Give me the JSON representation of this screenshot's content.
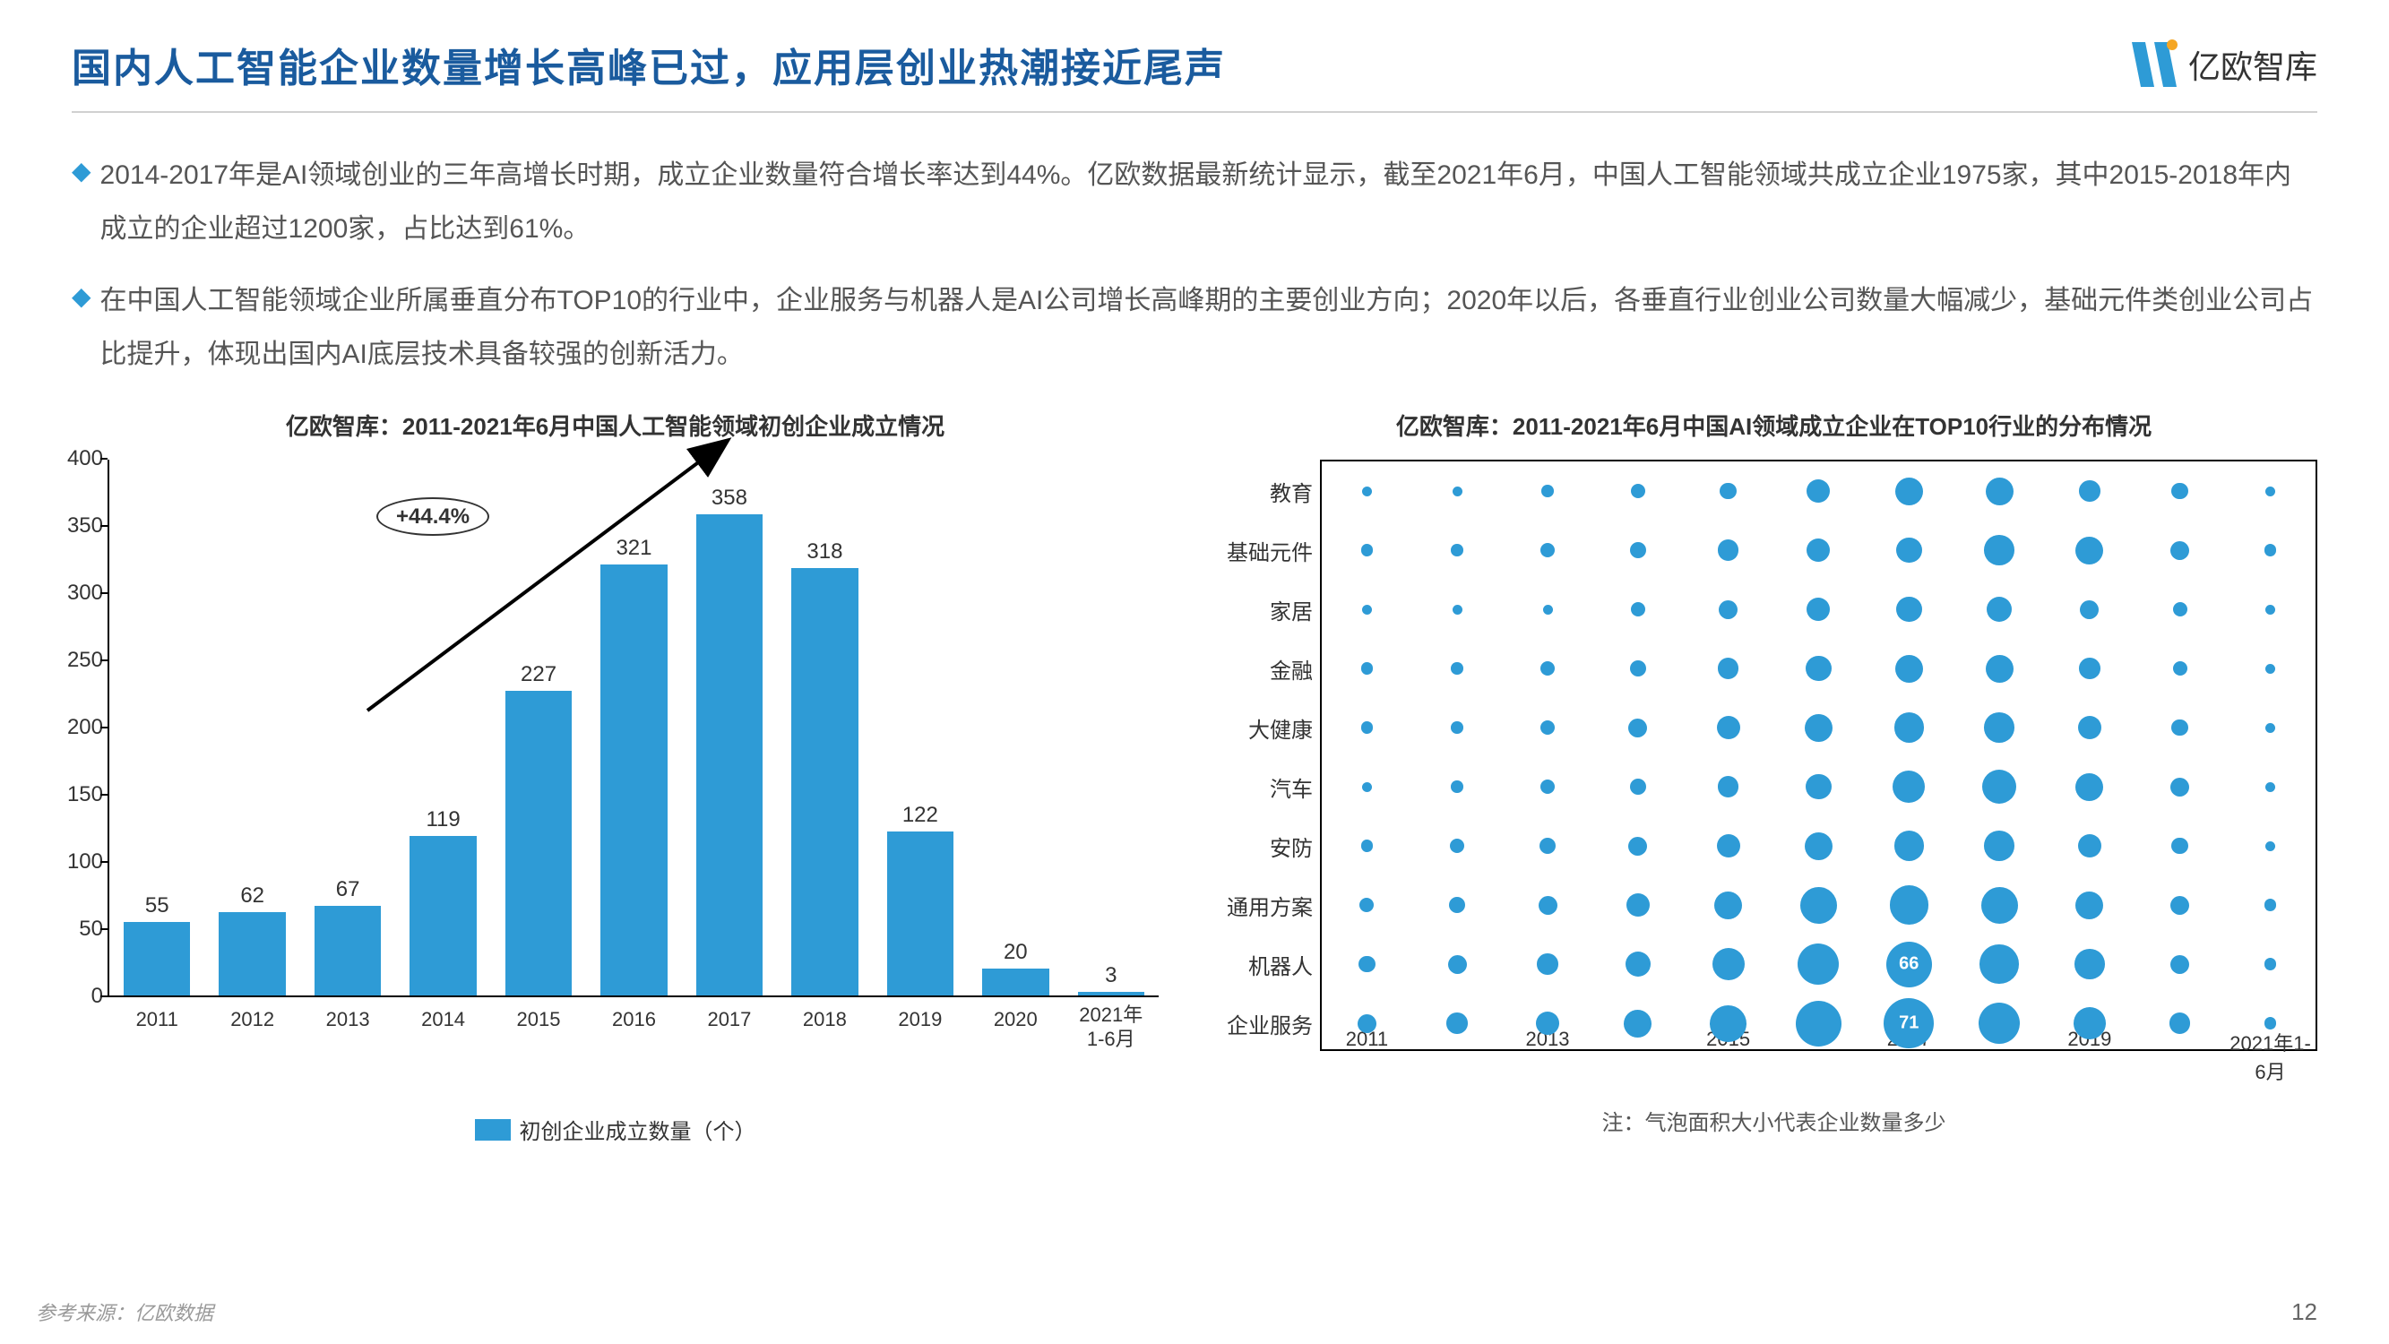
{
  "title": "国内人工智能企业数量增长高峰已过，应用层创业热潮接近尾声",
  "logo_text": "亿欧智库",
  "logo_color_main": "#2e9bd6",
  "logo_color_accent": "#f5a623",
  "bullets": [
    "2014-2017年是AI领域创业的三年高增长时期，成立企业数量符合增长率达到44%。亿欧数据最新统计显示，截至2021年6月，中国人工智能领域共成立企业1975家，其中2015-2018年内成立的企业超过1200家，占比达到61%。",
    "在中国人工智能领域企业所属垂直分布TOP10的行业中，企业服务与机器人是AI公司增长高峰期的主要创业方向；2020年以后，各垂直行业创业公司数量大幅减少，基础元件类创业公司占比提升，体现出国内AI底层技术具备较强的创新活力。"
  ],
  "bar_chart": {
    "title": "亿欧智库：2011-2021年6月中国人工智能领域初创企业成立情况",
    "categories": [
      "2011",
      "2012",
      "2013",
      "2014",
      "2015",
      "2016",
      "2017",
      "2018",
      "2019",
      "2020",
      "2021年\n1-6月"
    ],
    "values": [
      55,
      62,
      67,
      119,
      227,
      321,
      358,
      318,
      122,
      20,
      3
    ],
    "ylim": [
      0,
      400
    ],
    "ytick_step": 50,
    "bar_color": "#2e9bd6",
    "growth_label": "+44.4%",
    "legend_label": "初创企业成立数量（个）"
  },
  "bubble_chart": {
    "title": "亿欧智库：2011-2021年6月中国AI领域成立企业在TOP10行业的分布情况",
    "y_categories": [
      "教育",
      "基础元件",
      "家居",
      "金融",
      "大健康",
      "汽车",
      "安防",
      "通用方案",
      "机器人",
      "企业服务"
    ],
    "x_categories": [
      "2011",
      "",
      "2013",
      "",
      "2015",
      "",
      "2017",
      "",
      "2019",
      "",
      "2021年1-6月"
    ],
    "note": "注：气泡面积大小代表企业数量多少",
    "bubble_color": "#2e9bd6",
    "max_radius": 28,
    "min_radius": 3,
    "data": [
      [
        2,
        2,
        3,
        4,
        5,
        8,
        10,
        10,
        7,
        5,
        2
      ],
      [
        3,
        3,
        4,
        5,
        7,
        8,
        9,
        11,
        10,
        6,
        3
      ],
      [
        2,
        2,
        2,
        4,
        6,
        8,
        9,
        9,
        6,
        4,
        2
      ],
      [
        3,
        3,
        4,
        5,
        7,
        9,
        10,
        10,
        7,
        4,
        2
      ],
      [
        3,
        3,
        4,
        6,
        8,
        10,
        11,
        11,
        8,
        5,
        2
      ],
      [
        2,
        3,
        4,
        5,
        7,
        9,
        12,
        13,
        10,
        6,
        2
      ],
      [
        3,
        4,
        5,
        6,
        8,
        10,
        11,
        11,
        8,
        5,
        2
      ],
      [
        4,
        5,
        6,
        8,
        10,
        14,
        15,
        14,
        10,
        6,
        3
      ],
      [
        5,
        6,
        7,
        9,
        12,
        16,
        18,
        15,
        11,
        6,
        3
      ],
      [
        6,
        7,
        8,
        10,
        14,
        18,
        20,
        16,
        12,
        7,
        3
      ]
    ],
    "highlights": [
      {
        "row": 8,
        "col": 6,
        "label": "66"
      },
      {
        "row": 9,
        "col": 6,
        "label": "71"
      }
    ]
  },
  "source": "参考来源：亿欧数据",
  "page_number": "12",
  "background_color": "#ffffff"
}
